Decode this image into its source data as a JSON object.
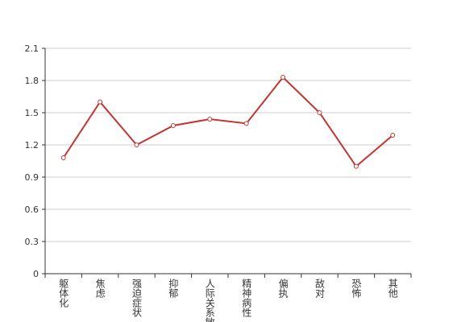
{
  "chart_data": {
    "type": "line",
    "categories": [
      "躯体化",
      "焦虑",
      "强迫症状",
      "抑郁",
      "人际关系敏感",
      "精神病性",
      "偏执",
      "敌对",
      "恐怖",
      "其他"
    ],
    "values": [
      1.08,
      1.6,
      1.2,
      1.38,
      1.44,
      1.4,
      1.83,
      1.5,
      1.0,
      1.29
    ],
    "color": "#c23531",
    "ylim": [
      0,
      2.1
    ],
    "yticks": [
      0,
      0.3,
      0.6,
      0.9,
      1.2,
      1.5,
      1.8,
      2.1
    ],
    "grid": true
  }
}
